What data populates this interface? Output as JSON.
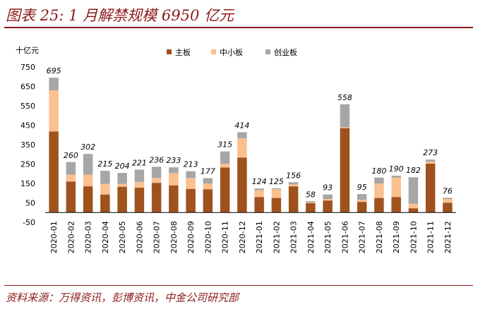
{
  "header": {
    "title": "图表 25: 1 月解禁规模 6950 亿元"
  },
  "footer": {
    "source": "资料来源：万得资讯，彭博资讯，中金公司研究部"
  },
  "chart_data": {
    "type": "bar",
    "stacked": true,
    "unit_label": "十亿元",
    "categories": [
      "2020-01",
      "2020-02",
      "2020-03",
      "2020-04",
      "2020-05",
      "2020-06",
      "2020-07",
      "2020-08",
      "2020-09",
      "2020-10",
      "2020-11",
      "2020-12",
      "2021-01",
      "2021-02",
      "2021-03",
      "2021-04",
      "2021-05",
      "2021-06",
      "2021-07",
      "2021-08",
      "2021-09",
      "2021-10",
      "2021-11",
      "2021-12"
    ],
    "series": [
      {
        "name": "主板",
        "color": "#a0521d",
        "values": [
          418,
          160,
          135,
          93,
          133,
          128,
          153,
          140,
          122,
          120,
          232,
          283,
          80,
          75,
          135,
          48,
          62,
          435,
          55,
          75,
          80,
          22,
          252,
          50
        ]
      },
      {
        "name": "中小板",
        "color": "#fac090",
        "values": [
          212,
          35,
          60,
          55,
          15,
          30,
          25,
          63,
          56,
          30,
          20,
          100,
          35,
          45,
          10,
          4,
          8,
          5,
          10,
          75,
          100,
          23,
          10,
          20
        ]
      },
      {
        "name": "创业板",
        "color": "#a6a6a6",
        "values": [
          65,
          65,
          107,
          67,
          56,
          63,
          58,
          30,
          35,
          27,
          63,
          31,
          9,
          5,
          11,
          6,
          23,
          118,
          30,
          30,
          10,
          137,
          11,
          6
        ]
      }
    ],
    "totals": [
      695,
      260,
      302,
      215,
      204,
      221,
      236,
      233,
      213,
      177,
      315,
      414,
      124,
      125,
      156,
      58,
      93,
      558,
      95,
      180,
      190,
      182,
      273,
      76
    ],
    "yticks": [
      -50,
      50,
      150,
      250,
      350,
      450,
      550,
      650,
      750
    ],
    "ylim": [
      -50,
      750
    ],
    "legend": "top-center",
    "grid": false
  }
}
